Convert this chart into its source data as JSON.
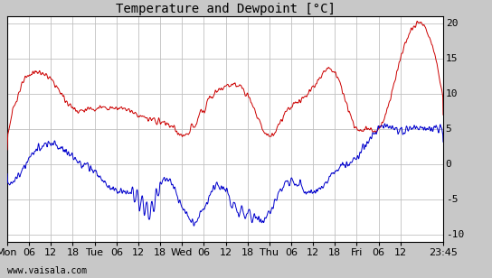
{
  "title": "Temperature and Dewpoint [°C]",
  "ylim": [
    -11,
    21
  ],
  "yticks": [
    -10,
    -5,
    0,
    5,
    10,
    15,
    20
  ],
  "background_color": "#c8c8c8",
  "plot_bg_color": "#ffffff",
  "grid_color": "#c0c0c0",
  "temp_color": "#cc0000",
  "dew_color": "#0000cc",
  "watermark": "www.vaisala.com",
  "x_tick_labels": [
    "Mon",
    "06",
    "12",
    "18",
    "Tue",
    "06",
    "12",
    "18",
    "Wed",
    "06",
    "12",
    "18",
    "Thu",
    "06",
    "12",
    "18",
    "Fri",
    "06",
    "12",
    "23:45"
  ],
  "x_tick_positions": [
    0,
    6,
    12,
    18,
    24,
    30,
    36,
    42,
    48,
    54,
    60,
    66,
    72,
    78,
    84,
    90,
    96,
    102,
    108,
    119.75
  ],
  "xlim": [
    0,
    119.75
  ],
  "title_fontsize": 10,
  "tick_fontsize": 8,
  "line_width": 0.7
}
